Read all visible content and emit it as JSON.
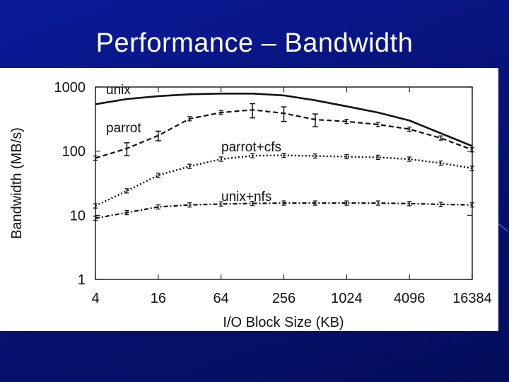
{
  "slide": {
    "title": "Performance – Bandwidth"
  },
  "chart_data": {
    "type": "line",
    "xlabel": "I/O Block Size (KB)",
    "ylabel": "Bandwidth (MB/s)",
    "x_scale": "log2",
    "y_scale": "log10",
    "xlim": [
      4,
      16384
    ],
    "ylim": [
      1,
      1000
    ],
    "x_ticks": [
      4,
      16,
      64,
      256,
      1024,
      4096,
      16384
    ],
    "x_tick_labels": [
      "4",
      "16",
      "64",
      "256",
      "1024",
      "4096",
      "16384"
    ],
    "y_ticks": [
      1,
      10,
      100,
      1000
    ],
    "y_tick_labels": [
      "1",
      "10",
      "100",
      "1000"
    ],
    "series": [
      {
        "name": "unix",
        "style": "solid",
        "x": [
          4,
          8,
          16,
          32,
          64,
          128,
          256,
          512,
          1024,
          2048,
          4096,
          8192,
          16384
        ],
        "y": [
          540,
          650,
          720,
          770,
          790,
          790,
          740,
          620,
          500,
          400,
          300,
          190,
          120
        ],
        "errorbars": false
      },
      {
        "name": "parrot",
        "style": "dashed",
        "x": [
          4,
          8,
          16,
          32,
          64,
          128,
          256,
          512,
          1024,
          2048,
          4096,
          8192,
          16384
        ],
        "y": [
          78,
          110,
          175,
          320,
          400,
          440,
          390,
          310,
          290,
          260,
          220,
          160,
          105
        ],
        "err": [
          0,
          25,
          30,
          0,
          0,
          110,
          100,
          70,
          0,
          0,
          0,
          0,
          0
        ],
        "errorbars": true
      },
      {
        "name": "parrot+cfs",
        "style": "dotted",
        "x": [
          4,
          8,
          16,
          32,
          64,
          128,
          256,
          512,
          1024,
          2048,
          4096,
          8192,
          16384
        ],
        "y": [
          14,
          24,
          42,
          58,
          75,
          85,
          86,
          84,
          82,
          80,
          75,
          65,
          54
        ],
        "errorbars": true
      },
      {
        "name": "unix+nfs",
        "style": "dashdot",
        "x": [
          4,
          8,
          16,
          32,
          64,
          128,
          256,
          512,
          1024,
          2048,
          4096,
          8192,
          16384
        ],
        "y": [
          9,
          11,
          13.5,
          14.5,
          15,
          15.3,
          15.5,
          15.5,
          15.5,
          15.5,
          15.2,
          14.8,
          14.5
        ],
        "errorbars": true
      }
    ],
    "annotations": [
      "unix",
      "parrot",
      "parrot+cfs",
      "unix+nfs"
    ],
    "grid": false,
    "legend": "inline labels"
  }
}
